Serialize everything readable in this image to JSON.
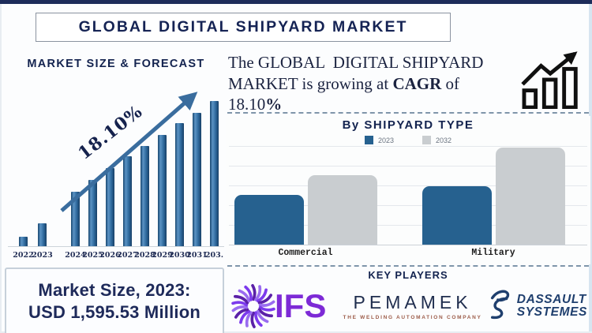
{
  "banner": {
    "title": "GLOBAL DIGITAL SHIPYARD MARKET"
  },
  "forecast": {
    "heading": "MARKET SIZE & FORECAST",
    "growth_label": "18.10%"
  },
  "headline": {
    "part1": "The GLOBAL  DIGITAL SHIPYARD MARKET is growing at ",
    "bold1": "CAGR",
    "part2": " of 18.10",
    "bold2": "%"
  },
  "shipyard_chart": {
    "heading": "By SHIPYARD TYPE"
  },
  "market_size": {
    "line1": "Market Size, 2023:",
    "line2": "USD 1,595.53 Million"
  },
  "key_players": {
    "heading": "KEY PLAYERS",
    "ifs_label": "IFS",
    "pemamek_label": "PEMAMEK",
    "pemamek_tagline": "THE WELDING AUTOMATION COMPANY",
    "dassault_line1": "DASSAULT",
    "dassault_line2": "SYSTEMES"
  },
  "colors": {
    "navy": "#13234f",
    "forecast_bar_blue": "#2f6a9e",
    "arrow_blue": "#3a6d9e",
    "type_bar_2023": "#26618f",
    "type_bar_2032": "#c9cdd0",
    "ifs_purple": "#7d2ad6",
    "pemamek_navy": "#1f2d4e",
    "pemamek_tagline_red": "#9c5c49",
    "dassault_blue": "#1f3f6e"
  },
  "chart_data": [
    {
      "type": "bar",
      "title": "MARKET SIZE & FORECAST",
      "categories": [
        "2022",
        "2023",
        "2024",
        "2025",
        "2026",
        "2027",
        "2028",
        "2029",
        "2030",
        "2031",
        "203."
      ],
      "values": [
        7,
        16,
        38,
        46,
        54,
        62,
        69,
        77,
        85,
        92,
        100
      ],
      "value_unit": "relative bar height, % of tallest bar (no y-axis shown)",
      "note": "final x label truncated at image edge; represents 2032",
      "annotation": "18.10% CAGR growth arrow over bars",
      "known_point": "2023 = USD 1,595.53 Million",
      "bar_color": "#2f6a9e",
      "grid": "off",
      "xlabel": "",
      "ylabel": ""
    },
    {
      "type": "bar",
      "title": "By SHIPYARD TYPE",
      "categories": [
        "Commercial",
        "Military"
      ],
      "series": [
        {
          "name": "2023",
          "color": "#26618f",
          "values": [
            50,
            59
          ]
        },
        {
          "name": "2032",
          "color": "#c9cdd0",
          "values": [
            70,
            98
          ]
        }
      ],
      "value_unit": "relative bar height, % of plot height (no y-axis shown)",
      "legend_position": "top",
      "grid": "horizontal",
      "xlabel": "",
      "ylabel": ""
    }
  ]
}
